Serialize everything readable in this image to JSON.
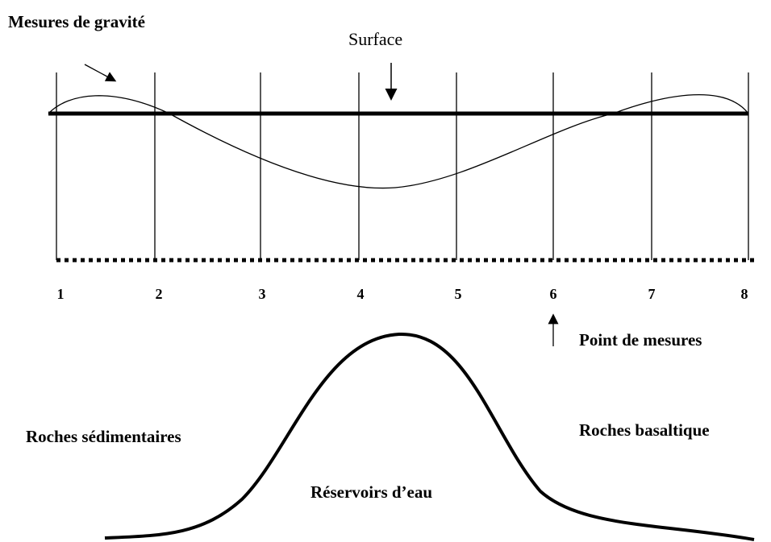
{
  "labels": {
    "gravity": "Mesures de gravité",
    "surface": "Surface",
    "measure_point": "Point de mesures",
    "sedimentary": "Roches sédimentaires",
    "basalt": "Roches basaltique",
    "reservoir": "Réservoirs d’eau"
  },
  "points": [
    "1",
    "2",
    "3",
    "4",
    "5",
    "6",
    "7",
    "8"
  ]
}
